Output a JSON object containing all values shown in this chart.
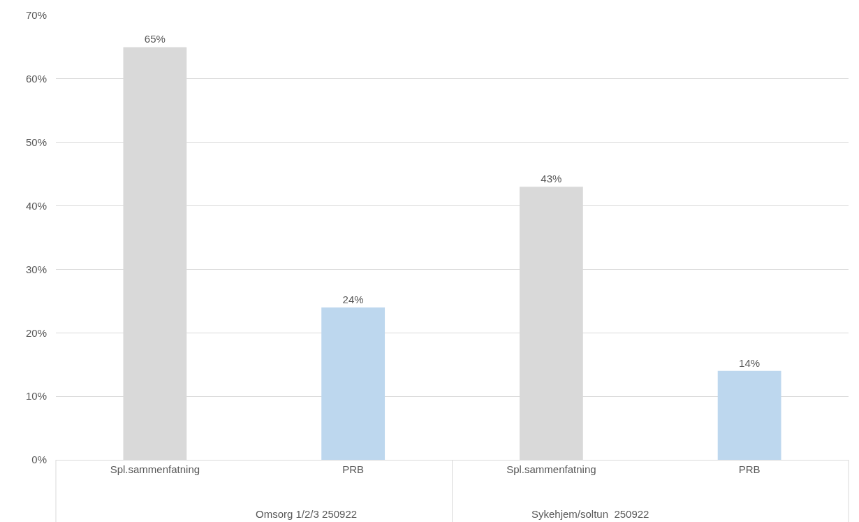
{
  "chart_data": {
    "type": "bar",
    "categories": [
      "Spl.sammenfatning",
      "PRB",
      "Spl.sammenfatning",
      "PRB"
    ],
    "values": [
      65,
      24,
      43,
      14
    ],
    "colors": [
      "#d9d9d9",
      "#bdd7ee",
      "#d9d9d9",
      "#bdd7ee"
    ],
    "value_labels": [
      "65%",
      "24%",
      "43%",
      "14%"
    ],
    "annotations": [
      "Omsorg 1/2/3 250922",
      "Sykehjem/soltun  250922"
    ],
    "ylim": [
      0,
      70
    ],
    "yticks": [
      {
        "value": 0,
        "label": "0%"
      },
      {
        "value": 10,
        "label": "10%"
      },
      {
        "value": 20,
        "label": "20%"
      },
      {
        "value": 30,
        "label": "30%"
      },
      {
        "value": 40,
        "label": "40%"
      },
      {
        "value": 50,
        "label": "50%"
      },
      {
        "value": 60,
        "label": "60%"
      },
      {
        "value": 70,
        "label": "70%"
      }
    ],
    "grid": "y",
    "legend": false
  }
}
